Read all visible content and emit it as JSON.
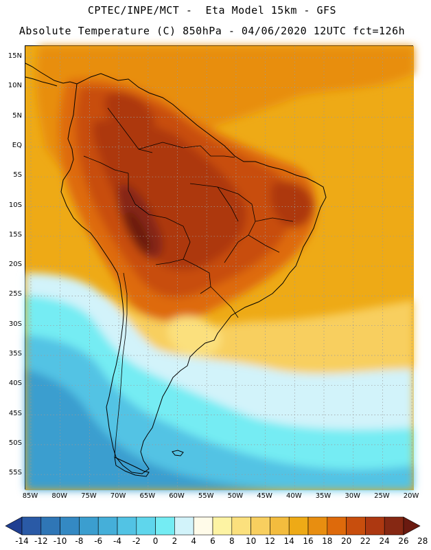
{
  "header": {
    "line1": "CPTEC/INPE/MCT -  Eta Model 15km - GFS",
    "line2": "Absolute Temperature (C) 850hPa - 04/06/2020 12UTC fct=126h"
  },
  "map": {
    "region": "South America",
    "lat_labels": [
      "15N",
      "10N",
      "5N",
      "EQ",
      "5S",
      "10S",
      "15S",
      "20S",
      "25S",
      "30S",
      "35S",
      "40S",
      "45S",
      "50S",
      "55S"
    ],
    "lon_labels": [
      "85W",
      "80W",
      "75W",
      "70W",
      "65W",
      "60W",
      "55W",
      "50W",
      "45W",
      "40W",
      "35W",
      "30W",
      "25W",
      "20W"
    ],
    "gridlines": "dotted",
    "temperature_field": [
      {
        "region": "Gran Chaco / central South America",
        "range_c": "24 to 28"
      },
      {
        "region": "Amazon basin and northern Brazil",
        "range_c": "22 to 26"
      },
      {
        "region": "Tropical Atlantic and Pacific oceans",
        "range_c": "16 to 20"
      },
      {
        "region": "Uruguay / River Plate",
        "range_c": "8 to 14"
      },
      {
        "region": "Patagonia and South Atlantic",
        "range_c": "-2 to 4"
      }
    ]
  },
  "colorbar": {
    "labels": [
      "-14",
      "-12",
      "-10",
      "-8",
      "-6",
      "-4",
      "-2",
      "0",
      "2",
      "4",
      "6",
      "8",
      "10",
      "12",
      "14",
      "16",
      "18",
      "20",
      "22",
      "24",
      "26",
      "28"
    ],
    "colors": [
      "#1f3f92",
      "#2a5aa6",
      "#2f76b6",
      "#3489c3",
      "#3b9ecf",
      "#45afd9",
      "#52c3e4",
      "#5fd6ec",
      "#74ecf3",
      "#d2f3fa",
      "#fffbe9",
      "#fdf3a3",
      "#fbe07d",
      "#f8cf5f",
      "#f3bc3e",
      "#eeaa16",
      "#e88e10",
      "#de6a0b",
      "#c84e0d",
      "#ad3811",
      "#862813",
      "#6a1a10"
    ]
  }
}
